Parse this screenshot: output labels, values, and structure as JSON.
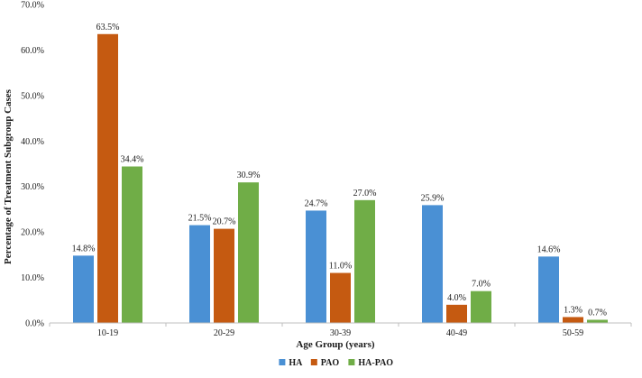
{
  "chart_data": {
    "type": "bar",
    "title": "",
    "xlabel": "Age Group (years)",
    "ylabel": "Percentage of Treatment Subgroup Cases",
    "ylim": [
      0,
      70
    ],
    "ytick_step": 10,
    "ytick_suffix": "%",
    "value_decimals": 1,
    "grid": false,
    "legend_position": "bottom",
    "categories": [
      "10-19",
      "20-29",
      "30-39",
      "40-49",
      "50-59"
    ],
    "series": [
      {
        "name": "HA",
        "color": "#4a90d4",
        "values": [
          14.8,
          21.5,
          24.7,
          25.9,
          14.6
        ]
      },
      {
        "name": "PAO",
        "color": "#c55a11",
        "values": [
          63.5,
          20.7,
          11.0,
          4.0,
          1.3
        ]
      },
      {
        "name": "HA-PAO",
        "color": "#70ad47",
        "values": [
          34.4,
          30.9,
          27.0,
          7.0,
          0.7
        ]
      }
    ]
  }
}
